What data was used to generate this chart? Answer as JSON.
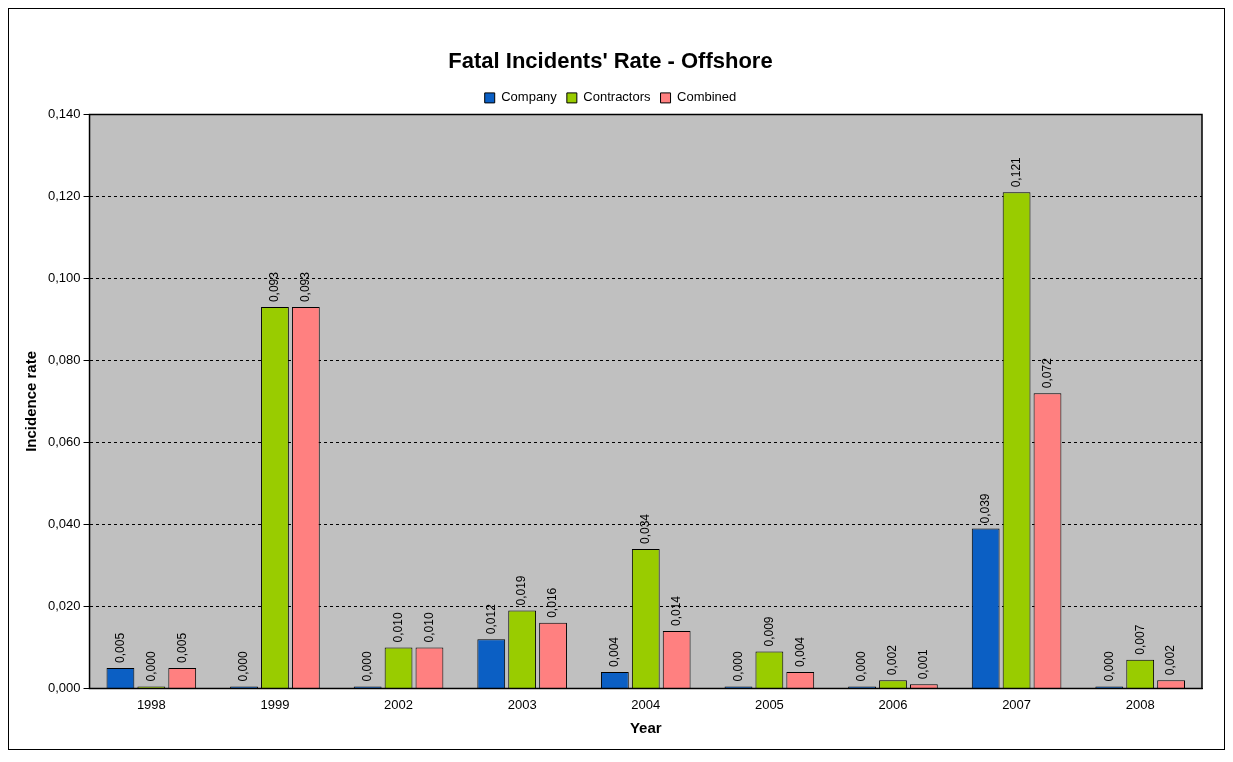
{
  "chart_data": {
    "type": "bar",
    "title": "Fatal Incidents' Rate - Offshore",
    "xlabel": "Year",
    "ylabel": "Incidence rate",
    "categories": [
      "1998",
      "1999",
      "2002",
      "2003",
      "2004",
      "2005",
      "2006",
      "2007",
      "2008"
    ],
    "series": [
      {
        "name": "Company",
        "color": "#0b5fc4",
        "values": [
          0.005,
          0,
          0,
          0.012,
          0.004,
          0,
          0,
          0.039,
          0
        ],
        "value_labels": [
          "0,005",
          "0,000",
          "0,000",
          "0,012",
          "0,004",
          "0,000",
          "0,000",
          "0,039",
          "0,000"
        ]
      },
      {
        "name": "Contractors",
        "color": "#99cc00",
        "values": [
          0,
          0.093,
          0.01,
          0.019,
          0.034,
          0.009,
          0.002,
          0.121,
          0.007
        ],
        "value_labels": [
          "0,000",
          "0,093",
          "0,010",
          "0,019",
          "0,034",
          "0,009",
          "0,002",
          "0,121",
          "0,007"
        ]
      },
      {
        "name": "Combined",
        "color": "#ff8080",
        "values": [
          0.005,
          0.093,
          0.01,
          0.016,
          0.014,
          0.004,
          0.001,
          0.072,
          0.002
        ],
        "value_labels": [
          "0,005",
          "0,093",
          "0,010",
          "0,016",
          "0,014",
          "0,004",
          "0,001",
          "0,072",
          "0,002"
        ]
      }
    ],
    "ylim": [
      0,
      0.14
    ],
    "yticks": [
      {
        "value": 0,
        "label": "0,000"
      },
      {
        "value": 0.02,
        "label": "0,020"
      },
      {
        "value": 0.04,
        "label": "0,040"
      },
      {
        "value": 0.06,
        "label": "0,060"
      },
      {
        "value": 0.08,
        "label": "0,080"
      },
      {
        "value": 0.1,
        "label": "0,100"
      },
      {
        "value": 0.12,
        "label": "0,120"
      },
      {
        "value": 0.14,
        "label": "0,140"
      }
    ],
    "grid": "y",
    "legend": "top"
  }
}
